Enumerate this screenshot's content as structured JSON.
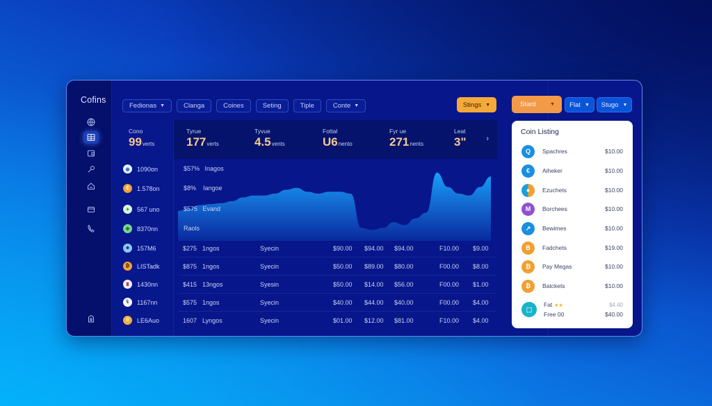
{
  "app": {
    "title": "Cofins"
  },
  "colors": {
    "window_bg": "#07168a",
    "sidebar_bg": "#050f6c",
    "accent_orange": "#f6a93b",
    "accent_blue": "#0a54d8",
    "stat_value": "#f9c98e",
    "chart_fill_top": "#1aa6ff",
    "chart_fill_bottom": "#0a2aa0"
  },
  "sidebar": {
    "items": [
      {
        "icon": "globe-icon"
      },
      {
        "icon": "dashboard-icon",
        "active": true
      },
      {
        "icon": "wallet-icon"
      },
      {
        "icon": "key-icon"
      },
      {
        "icon": "home-icon"
      },
      {
        "icon": "card-icon"
      },
      {
        "icon": "phone-icon"
      },
      {
        "icon": "exit-icon"
      }
    ]
  },
  "tabs": [
    {
      "label": "Fedionas",
      "dropdown": true
    },
    {
      "label": "Clanga",
      "dropdown": false
    },
    {
      "label": "Coines",
      "dropdown": false
    },
    {
      "label": "Seting",
      "dropdown": false
    },
    {
      "label": "Tiple",
      "dropdown": false
    },
    {
      "label": "Conte",
      "dropdown": true
    }
  ],
  "toolbar": {
    "stings_label": "Stings",
    "stard_label": "Stard",
    "flat_label": "Flat",
    "stugo_label": "Stugo"
  },
  "stats": [
    {
      "label": "Cono",
      "value": "99",
      "unit": "verts"
    },
    {
      "label": "Tyrue",
      "value": "177",
      "unit": "verts"
    },
    {
      "label": "Tyvue",
      "value": "4.5",
      "unit": "vents"
    },
    {
      "label": "Fottal",
      "value": "U6",
      "unit": "nento"
    },
    {
      "label": "Fyr ue",
      "value": "271",
      "unit": "nents"
    },
    {
      "label": "Leat",
      "value": "3\"",
      "unit": ""
    }
  ],
  "coins": [
    {
      "name": "1090on",
      "color": "#e8f4ff",
      "fg": "#2d6bd6",
      "glyph": "◉"
    },
    {
      "name": "1.578on",
      "color": "#f4a23a",
      "fg": "#ffffff",
      "glyph": "₵"
    },
    {
      "name": "567 uno",
      "color": "#d9f5de",
      "fg": "#2a9a4a",
      "glyph": "✦"
    },
    {
      "name": "8370nn",
      "color": "#7ad68d",
      "fg": "#136b2d",
      "glyph": "✤"
    },
    {
      "name": "157M6",
      "color": "#8cc6ff",
      "fg": "#18356e",
      "glyph": "☻"
    },
    {
      "name": "LISTadk",
      "color": "#f4a23a",
      "fg": "#3a1d00",
      "glyph": "₿"
    },
    {
      "name": "1430nn",
      "color": "#f2f2ff",
      "fg": "#b3364d",
      "glyph": "♜"
    },
    {
      "name": "1167nn",
      "color": "#ffffff",
      "fg": "#1c3a8c",
      "glyph": "₠"
    },
    {
      "name": "LE6Auo",
      "color": "#f4b23a",
      "fg": "#ffffff",
      "glyph": "0"
    }
  ],
  "chart_rows": [
    {
      "price": "$57%",
      "name": "Inagos"
    },
    {
      "price": "$8%",
      "name": "Iangoe"
    },
    {
      "price": "$575",
      "name": "Evand"
    },
    {
      "price": "",
      "name": "Raols"
    }
  ],
  "chart_data": {
    "type": "area",
    "title": "",
    "xlabel": "",
    "ylabel": "",
    "x": [
      0,
      1,
      2,
      3,
      4,
      5,
      6,
      7,
      8,
      9,
      10,
      11,
      12,
      13,
      14,
      15,
      16,
      17,
      18,
      19,
      20,
      21,
      22,
      23,
      24,
      25,
      26,
      27,
      28,
      29
    ],
    "values": [
      30,
      32,
      36,
      37,
      38,
      40,
      44,
      46,
      46,
      48,
      52,
      54,
      50,
      48,
      50,
      50,
      48,
      12,
      10,
      12,
      18,
      15,
      22,
      28,
      70,
      55,
      48,
      46,
      55,
      66
    ],
    "ylim": [
      0,
      80
    ],
    "grid": false
  },
  "table": {
    "rows": [
      {
        "price": "$275",
        "change": "1ngos",
        "status": "Syecin",
        "c1": "$90.00",
        "c2": "$94.00",
        "c3": "$94.00",
        "c4": "F10.00",
        "c5": "$9.00"
      },
      {
        "price": "$875",
        "change": "1ngos",
        "status": "Syecin",
        "c1": "$50.00",
        "c2": "$89.00",
        "c3": "$80.00",
        "c4": "F00.00",
        "c5": "$8.00"
      },
      {
        "price": "$415",
        "change": "13ngos",
        "status": "Syesin",
        "c1": "$50.00",
        "c2": "$14.00",
        "c3": "$56.00",
        "c4": "F00.00",
        "c5": "$1.00"
      },
      {
        "price": "$575",
        "change": "1ngos",
        "status": "Syecin",
        "c1": "$40.00",
        "c2": "$44.00",
        "c3": "$40.00",
        "c4": "F00.00",
        "c5": "$4.00"
      },
      {
        "price": "1607",
        "change": "Lyngos",
        "status": "Syecin",
        "c1": "$01.00",
        "c2": "$12.00",
        "c3": "$81.00",
        "c4": "F10.00",
        "c5": "$4.00"
      }
    ]
  },
  "panel": {
    "title": "Coin Listing",
    "items": [
      {
        "name": "Spachres",
        "price": "$10.00",
        "color": "#1a8fe0",
        "glyph": "Q"
      },
      {
        "name": "Aiheker",
        "price": "$10.00",
        "color": "#1a8fe0",
        "glyph": "€"
      },
      {
        "name": "Ezuchets",
        "price": "$10.00",
        "color": "#f0a030",
        "glyph": "●"
      },
      {
        "name": "Borchees",
        "price": "$10.00",
        "color": "#9050d0",
        "glyph": "M"
      },
      {
        "name": "Bewimes",
        "price": "$10.00",
        "color": "#1a8fe0",
        "glyph": "↗"
      },
      {
        "name": "Fadchets",
        "price": "$19.00",
        "color": "#f0a030",
        "glyph": "B"
      },
      {
        "name": "Pay Megas",
        "price": "$10.00",
        "color": "#f0a030",
        "glyph": "₿"
      },
      {
        "name": "Batckets",
        "price": "$10.00",
        "color": "#f0a030",
        "glyph": "₿"
      },
      {
        "name": "Fat",
        "sub": "Free 00",
        "price": "$4.40",
        "price2": "$40.00",
        "color": "#18b3c8",
        "glyph": "⬚",
        "stars": "★★"
      }
    ]
  }
}
